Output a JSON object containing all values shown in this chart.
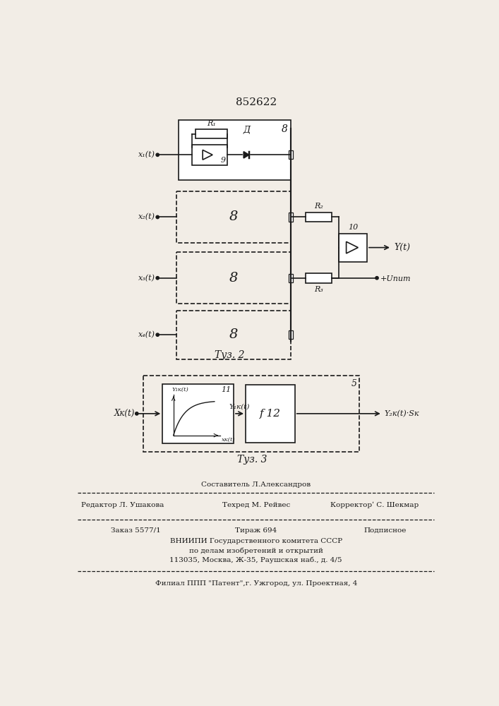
{
  "patent_number": "852622",
  "bg_color": "#f2ede6",
  "line_color": "#1a1a1a",
  "fig2_caption": "Τуз. 2",
  "fig3_caption": "Τуз. 3",
  "footer": {
    "sostavitel": "Составитель Л.Александров",
    "editor": "Редактор Л. Ушакова",
    "techred": "Техред М. Рейвес",
    "corrector": "Корректорʹ С. Шекмар",
    "zakaz": "Заказ 5577/1",
    "tirazh": "Тираж 694",
    "podpisnoe": "Подписное",
    "vnipi_line1": "ВНИИПИ Государственного комитета СССР",
    "vnipi_line2": "по делам изобретений и открытий",
    "address": "113035, Москва, Ж-35, Раушская наб., д. 4/5",
    "filial": "Филиал ППП \"Патент\",г. Ужгород, ул. Проектная, 4"
  }
}
